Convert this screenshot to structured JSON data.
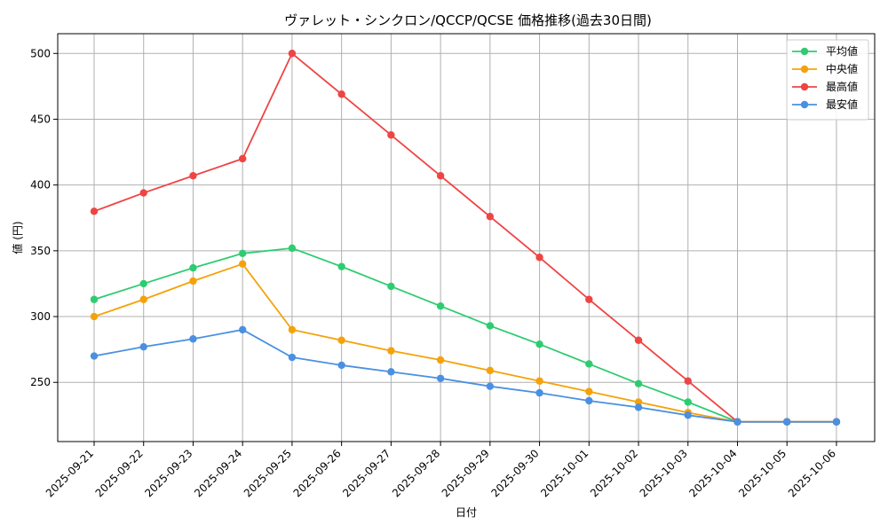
{
  "chart_data": {
    "type": "line",
    "title": "ヴァレット・シンクロン/QCCP/QCSE 価格推移(過去30日間)",
    "xlabel": "日付",
    "ylabel": "値 (円)",
    "categories": [
      "2025-09-21",
      "2025-09-22",
      "2025-09-23",
      "2025-09-24",
      "2025-09-25",
      "2025-09-26",
      "2025-09-27",
      "2025-09-28",
      "2025-09-29",
      "2025-09-30",
      "2025-10-01",
      "2025-10-02",
      "2025-10-03",
      "2025-10-04",
      "2025-10-05",
      "2025-10-06"
    ],
    "ylim": [
      205,
      515
    ],
    "yticks": [
      250,
      300,
      350,
      400,
      450,
      500
    ],
    "grid": true,
    "legend_position": "top-right",
    "series": [
      {
        "name": "平均値",
        "color": "#2ecc71",
        "values": [
          313,
          325,
          337,
          348,
          352,
          338,
          323,
          308,
          293,
          279,
          264,
          249,
          235,
          220,
          220,
          220
        ]
      },
      {
        "name": "中央値",
        "color": "#f5a20a",
        "values": [
          300,
          313,
          327,
          340,
          290,
          282,
          274,
          267,
          259,
          251,
          243,
          235,
          227,
          220,
          220,
          220
        ]
      },
      {
        "name": "最高値",
        "color": "#ef4444",
        "values": [
          380,
          394,
          407,
          420,
          500,
          469,
          438,
          407,
          376,
          345,
          313,
          282,
          251,
          220,
          220,
          220
        ]
      },
      {
        "name": "最安値",
        "color": "#4a90e2",
        "values": [
          270,
          277,
          283,
          290,
          269,
          263,
          258,
          253,
          247,
          242,
          236,
          231,
          225,
          220,
          220,
          220
        ]
      }
    ]
  }
}
